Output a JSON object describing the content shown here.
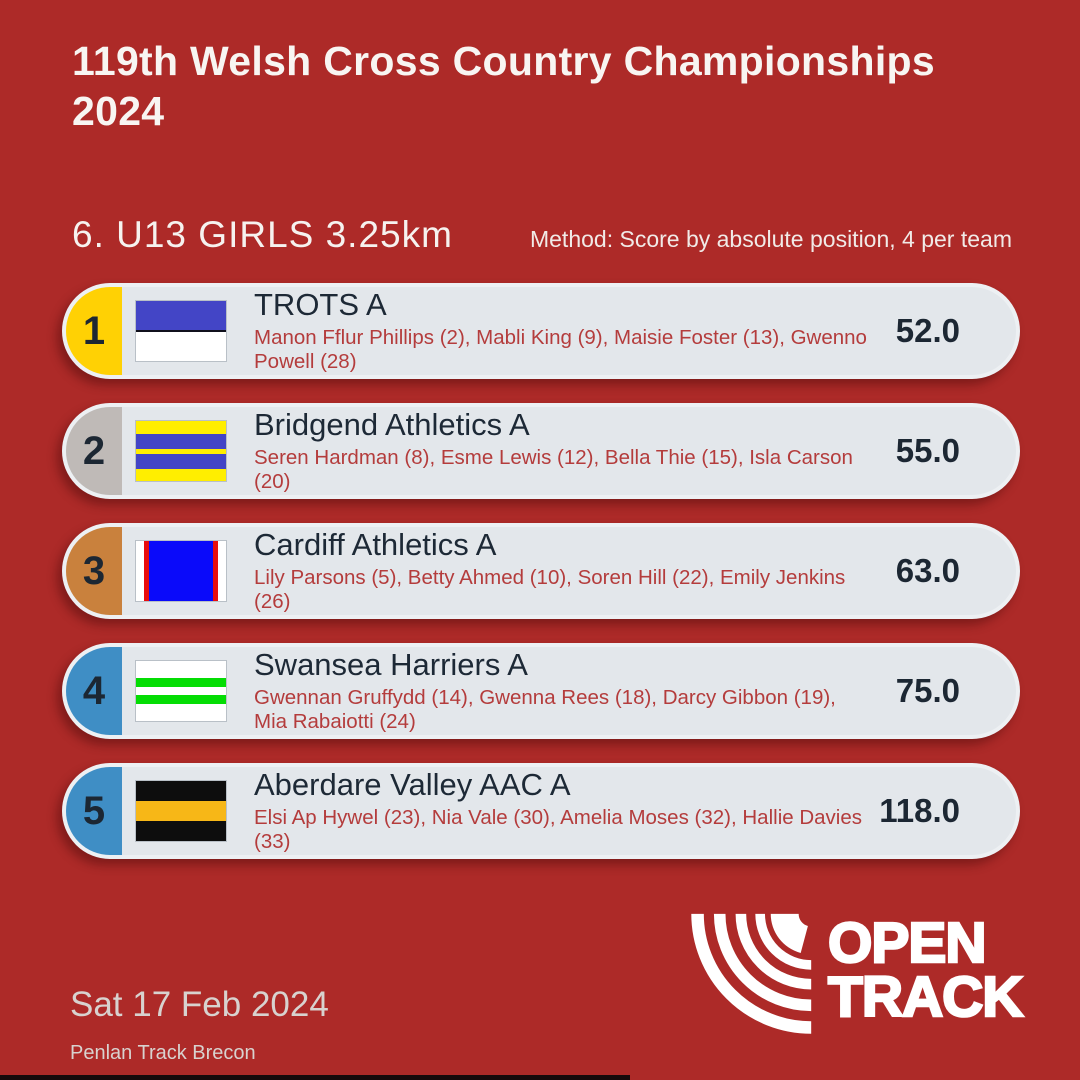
{
  "page": {
    "bg_color": "#ad2a28",
    "card_color": "#e3e7eb",
    "card_ring_color": "#edf0f3",
    "athlete_text_color": "#b43c3c",
    "dark_text_color": "#1c2733"
  },
  "header": {
    "title": "119th Welsh Cross Country Championships 2024"
  },
  "event": {
    "heading": "6. U13 GIRLS 3.25km",
    "method": "Method: Score by absolute position, 4 per team"
  },
  "results": {
    "rows": [
      {
        "rank": "1",
        "rank_color": "#ffd104",
        "team": "TROTS A",
        "athletes": "Manon Fflur Phillips (2), Mabli King (9), Maisie Foster (13), Gwenno Powell (28)",
        "score": "52.0",
        "flag": {
          "dir": "column",
          "stripes": [
            [
              "#4345c6",
              48
            ],
            [
              "#10101c",
              3
            ],
            [
              "#ffffff",
              49
            ]
          ]
        }
      },
      {
        "rank": "2",
        "rank_color": "#bfbab7",
        "team": "Bridgend Athletics A",
        "athletes": "Seren Hardman (8), Esme Lewis (12), Bella Thie (15), Isla Carson (20)",
        "score": "55.0",
        "flag": {
          "dir": "column",
          "stripes": [
            [
              "#ffee00",
              22
            ],
            [
              "#4345c6",
              25
            ],
            [
              "#ffee00",
              8
            ],
            [
              "#4345c6",
              25
            ],
            [
              "#ffee00",
              20
            ]
          ]
        }
      },
      {
        "rank": "3",
        "rank_color": "#c9813d",
        "team": "Cardiff Athletics A",
        "athletes": "Lily Parsons (5), Betty Ahmed (10), Soren Hill (22), Emily Jenkins (26)",
        "score": "63.0",
        "flag": {
          "dir": "row",
          "stripes": [
            [
              "#ffffff",
              9
            ],
            [
              "#e80d0d",
              5
            ],
            [
              "#0a0afa",
              72
            ],
            [
              "#e80d0d",
              5
            ],
            [
              "#ffffff",
              9
            ]
          ]
        }
      },
      {
        "rank": "4",
        "rank_color": "#3f8ec5",
        "team": "Swansea Harriers A",
        "athletes": "Gwennan Gruffydd (14), Gwenna Rees (18), Darcy Gibbon (19), Mia Rabaiotti (24)",
        "score": "75.0",
        "flag": {
          "dir": "column",
          "stripes": [
            [
              "#ffffff",
              28
            ],
            [
              "#04dd04",
              15
            ],
            [
              "#ffffff",
              13
            ],
            [
              "#04dd04",
              15
            ],
            [
              "#ffffff",
              29
            ]
          ]
        }
      },
      {
        "rank": "5",
        "rank_color": "#3f8ec5",
        "team": "Aberdare Valley AAC A",
        "athletes": "Elsi Ap Hywel (23), Nia Vale (30), Amelia Moses (32), Hallie Davies (33)",
        "score": "118.0",
        "flag": {
          "dir": "column",
          "stripes": [
            [
              "#0d0d0d",
              34
            ],
            [
              "#f7b717",
              32
            ],
            [
              "#0d0d0d",
              34
            ]
          ]
        }
      }
    ]
  },
  "footer": {
    "date": "Sat 17 Feb 2024",
    "venue": "Penlan Track Brecon",
    "logo_line1": "OPEN",
    "logo_line2": "TRACK"
  }
}
